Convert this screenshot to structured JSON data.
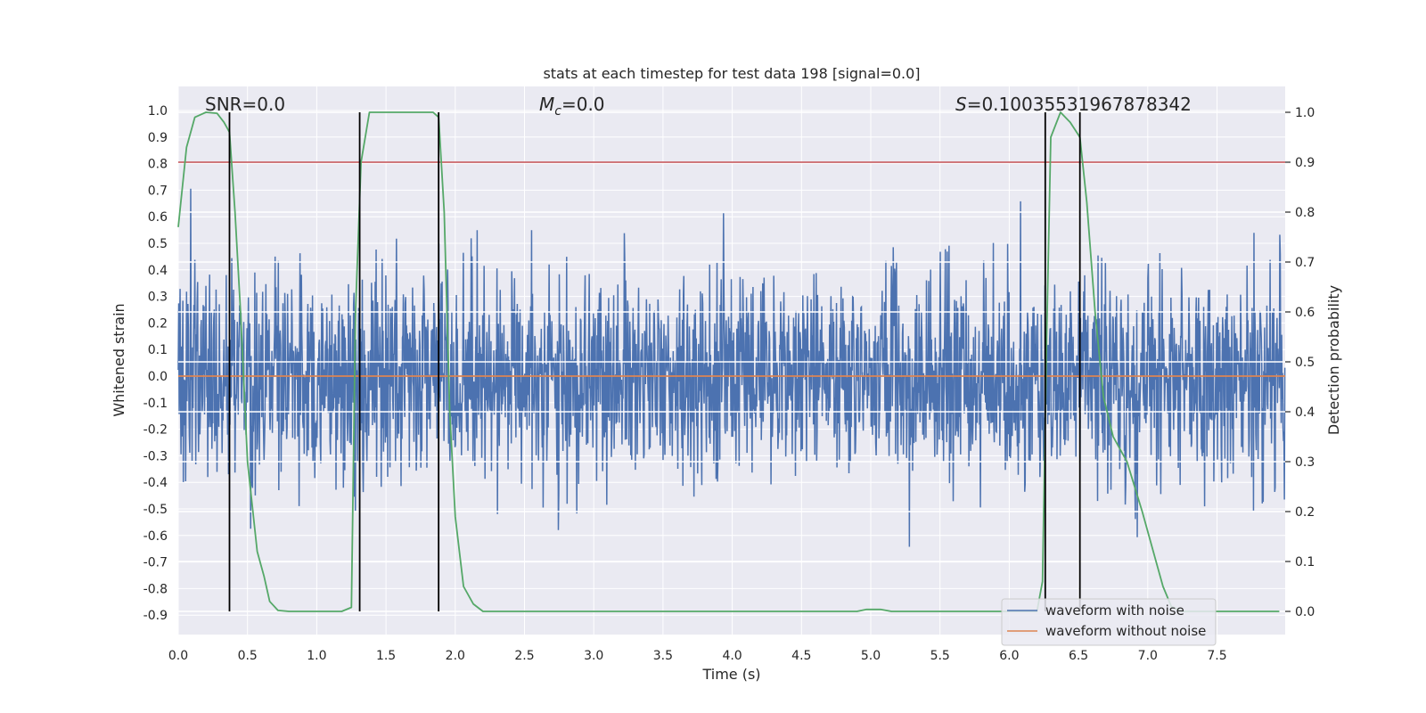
{
  "chart_data": {
    "type": "line",
    "title": "stats at each timestep for test data 198 [signal=0.0]",
    "xlabel": "Time (s)",
    "ylabel": "Whitened strain",
    "y2label": "Detection probability",
    "xlim": [
      0,
      8
    ],
    "ylim": [
      -1.0,
      1.05
    ],
    "y2lim": [
      -0.05,
      1.03
    ],
    "xticks": [
      "0.0",
      "0.5",
      "1.0",
      "1.5",
      "2.0",
      "2.5",
      "3.0",
      "3.5",
      "4.0",
      "4.5",
      "5.0",
      "5.5",
      "6.0",
      "6.5",
      "7.0",
      "7.5"
    ],
    "yticks": [
      "1.0",
      "0.9",
      "0.8",
      "0.7",
      "0.6",
      "0.5",
      "0.4",
      "0.3",
      "0.2",
      "0.1",
      "0.0",
      "-0.1",
      "-0.2",
      "-0.3",
      "-0.4",
      "-0.5",
      "-0.6",
      "-0.7",
      "-0.8",
      "-0.9"
    ],
    "y2ticks": [
      "0.0",
      "0.1",
      "0.2",
      "0.3",
      "0.4",
      "0.5",
      "0.6",
      "0.7",
      "0.8",
      "0.9",
      "1.0"
    ],
    "annotations": {
      "snr": "SNR=0.0",
      "mc_symbol": "M",
      "mc_sub": "c",
      "mc_value": "=0.0",
      "s_symbol": "S",
      "s_value": "=0.10035531967878342"
    },
    "grid": true,
    "legend_position": "lower-right",
    "noise": {
      "name": "waveform with noise",
      "color": "#4c72b0",
      "samples": 2400,
      "sigma": 0.2,
      "clip": [
        -0.85,
        1.0
      ]
    },
    "clean": {
      "name": "waveform without noise",
      "color": "#dd8452",
      "value": 0.0
    },
    "detection_threshold": {
      "value": 0.9,
      "color": "#c44e52"
    },
    "detection_probability": {
      "color": "#55a868",
      "points": [
        [
          0.0,
          0.77
        ],
        [
          0.06,
          0.93
        ],
        [
          0.12,
          0.99
        ],
        [
          0.2,
          1.0
        ],
        [
          0.28,
          0.998
        ],
        [
          0.33,
          0.98
        ],
        [
          0.37,
          0.96
        ],
        [
          0.41,
          0.8
        ],
        [
          0.45,
          0.6
        ],
        [
          0.5,
          0.3
        ],
        [
          0.57,
          0.12
        ],
        [
          0.62,
          0.07
        ],
        [
          0.66,
          0.02
        ],
        [
          0.72,
          0.002
        ],
        [
          0.8,
          0.0
        ],
        [
          1.18,
          0.0
        ],
        [
          1.25,
          0.008
        ],
        [
          1.28,
          0.6
        ],
        [
          1.32,
          0.9
        ],
        [
          1.38,
          1.0
        ],
        [
          1.84,
          1.0
        ],
        [
          1.88,
          0.99
        ],
        [
          1.92,
          0.8
        ],
        [
          1.96,
          0.4
        ],
        [
          2.0,
          0.19
        ],
        [
          2.06,
          0.05
        ],
        [
          2.13,
          0.015
        ],
        [
          2.2,
          0.0
        ],
        [
          4.9,
          0.0
        ],
        [
          4.97,
          0.004
        ],
        [
          5.07,
          0.004
        ],
        [
          5.15,
          0.0
        ],
        [
          6.2,
          0.0
        ],
        [
          6.24,
          0.06
        ],
        [
          6.27,
          0.55
        ],
        [
          6.3,
          0.95
        ],
        [
          6.37,
          1.0
        ],
        [
          6.44,
          0.98
        ],
        [
          6.51,
          0.95
        ],
        [
          6.56,
          0.82
        ],
        [
          6.62,
          0.6
        ],
        [
          6.68,
          0.43
        ],
        [
          6.75,
          0.35
        ],
        [
          6.85,
          0.3
        ],
        [
          6.96,
          0.2
        ],
        [
          7.04,
          0.12
        ],
        [
          7.11,
          0.05
        ],
        [
          7.17,
          0.01
        ],
        [
          7.25,
          0.0
        ],
        [
          7.95,
          0.0
        ]
      ]
    },
    "event_lines": [
      0.37,
      1.31,
      1.88,
      6.26,
      6.51
    ]
  }
}
